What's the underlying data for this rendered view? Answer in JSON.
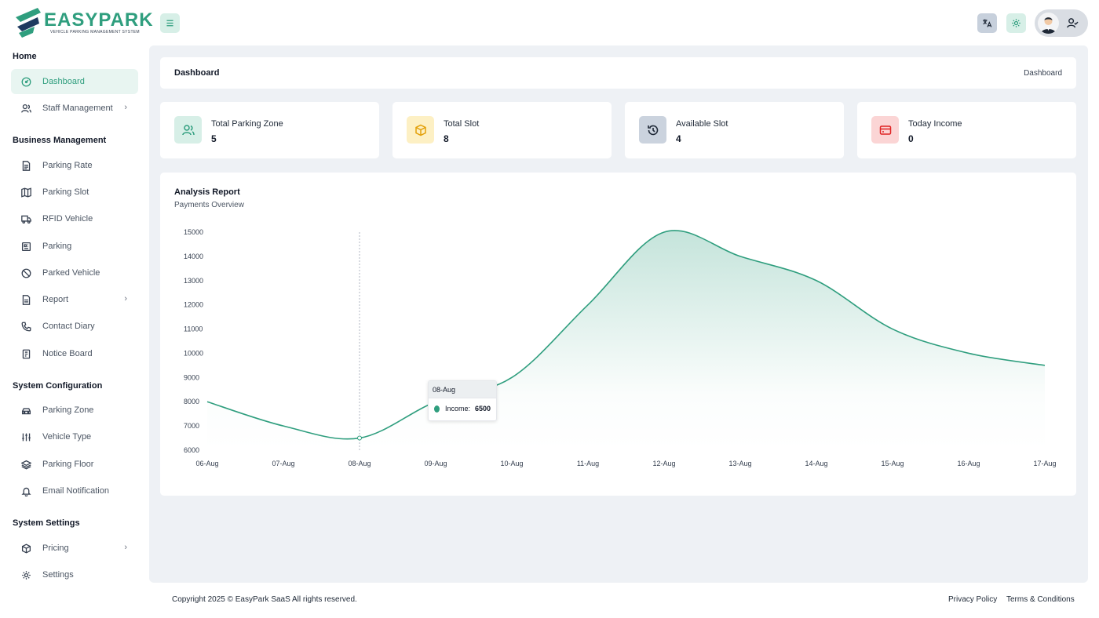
{
  "brand": {
    "name": "EASYPARK",
    "tagline": "VEHICLE PARKING MANAGEMENT SYSTEM",
    "accent": "#2f9e7e"
  },
  "sidebar": {
    "sections": [
      {
        "title": "Home"
      },
      {
        "title": "Business Management"
      },
      {
        "title": "System Configuration"
      },
      {
        "title": "System Settings"
      }
    ],
    "items": [
      {
        "label": "Dashboard",
        "icon": "dashboard-icon"
      },
      {
        "label": "Staff Management",
        "icon": "users-icon"
      },
      {
        "label": "Parking Rate",
        "icon": "document-icon"
      },
      {
        "label": "Parking Slot",
        "icon": "map-icon"
      },
      {
        "label": "RFID Vehicle",
        "icon": "truck-icon"
      },
      {
        "label": "Parking",
        "icon": "parking-icon"
      },
      {
        "label": "Parked Vehicle",
        "icon": "ban-icon"
      },
      {
        "label": "Report",
        "icon": "report-icon"
      },
      {
        "label": "Contact Diary",
        "icon": "phone-icon"
      },
      {
        "label": "Notice Board",
        "icon": "notice-icon"
      },
      {
        "label": "Parking Zone",
        "icon": "car-icon"
      },
      {
        "label": "Vehicle Type",
        "icon": "sliders-icon"
      },
      {
        "label": "Parking Floor",
        "icon": "layers-icon"
      },
      {
        "label": "Email Notification",
        "icon": "bell-icon"
      },
      {
        "label": "Pricing",
        "icon": "box-icon"
      },
      {
        "label": "Settings",
        "icon": "gear-icon"
      }
    ]
  },
  "breadcrumb": {
    "title": "Dashboard",
    "current": "Dashboard"
  },
  "stats": [
    {
      "label": "Total Parking Zone",
      "value": "5",
      "icon": "users-icon",
      "bg": "#d7efe7",
      "color": "#2f9e7e"
    },
    {
      "label": "Total Slot",
      "value": "8",
      "icon": "cube-icon",
      "bg": "#fdf0c4",
      "color": "#e3a008"
    },
    {
      "label": "Available Slot",
      "value": "4",
      "icon": "history-icon",
      "bg": "#cbd3de",
      "color": "#1f2937"
    },
    {
      "label": "Today Income",
      "value": "0",
      "icon": "card-icon",
      "bg": "#fbd5d5",
      "color": "#e02424"
    }
  ],
  "chart": {
    "title": "Analysis Report",
    "subtitle": "Payments Overview"
  },
  "chart_data": {
    "type": "area",
    "x": [
      "06-Aug",
      "07-Aug",
      "08-Aug",
      "09-Aug",
      "10-Aug",
      "11-Aug",
      "12-Aug",
      "13-Aug",
      "14-Aug",
      "15-Aug",
      "16-Aug",
      "17-Aug"
    ],
    "series": [
      {
        "name": "Income",
        "values": [
          8000,
          7000,
          6500,
          8000,
          9000,
          12000,
          15000,
          14000,
          13000,
          11000,
          10000,
          9500
        ],
        "color": "#2f9e7e"
      }
    ],
    "yticks": [
      "15000",
      "14000",
      "13000",
      "12000",
      "11000",
      "10000",
      "9000",
      "8000",
      "7000",
      "6000"
    ],
    "ylim": [
      6000,
      15000
    ],
    "tooltip": {
      "x": "08-Aug",
      "label": "Income:",
      "value": "6500"
    }
  },
  "footer": {
    "copyright": "Copyright 2025 © EasyPark SaaS All rights reserved.",
    "privacy": "Privacy Policy",
    "terms": "Terms & Conditions"
  }
}
